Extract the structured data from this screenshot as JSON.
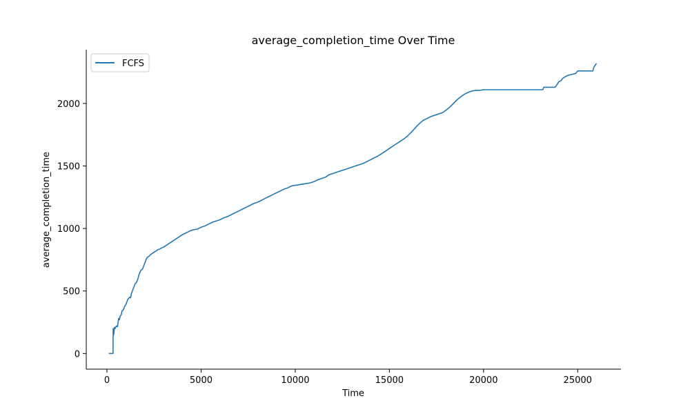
{
  "chart_data": {
    "type": "line",
    "title": "average_completion_time Over Time",
    "xlabel": "Time",
    "ylabel": "average_completion_time",
    "xlim": [
      -1100,
      27300
    ],
    "ylim": [
      -125,
      2430
    ],
    "xticks": [
      0,
      5000,
      10000,
      15000,
      20000,
      25000
    ],
    "yticks": [
      0,
      500,
      1000,
      1500,
      2000
    ],
    "grid": false,
    "legend_position": "top-left",
    "series": [
      {
        "name": "FCFS",
        "color": "#1f77b4",
        "x": [
          100,
          320,
          330,
          360,
          400,
          430,
          500,
          560,
          620,
          660,
          700,
          760,
          800,
          850,
          900,
          950,
          1000,
          1050,
          1100,
          1150,
          1200,
          1250,
          1300,
          1350,
          1400,
          1450,
          1500,
          1550,
          1600,
          1650,
          1700,
          1750,
          1800,
          1850,
          1900,
          1950,
          2000,
          2050,
          2100,
          2150,
          2200,
          2250,
          2300,
          2400,
          2500,
          2600,
          2700,
          2800,
          2900,
          3000,
          3200,
          3400,
          3600,
          3800,
          4000,
          4200,
          4400,
          4600,
          4800,
          5000,
          5200,
          5400,
          5600,
          5800,
          6000,
          6200,
          6400,
          6600,
          6800,
          7000,
          7200,
          7400,
          7600,
          7800,
          8000,
          8200,
          8400,
          8600,
          8800,
          9000,
          9200,
          9400,
          9600,
          9800,
          10000,
          10200,
          10400,
          10600,
          10800,
          11000,
          11200,
          11400,
          11600,
          11800,
          12000,
          12200,
          12400,
          12600,
          12800,
          13000,
          13200,
          13400,
          13600,
          13800,
          14000,
          14200,
          14400,
          14600,
          14800,
          15000,
          15200,
          15400,
          15600,
          15800,
          16000,
          16200,
          16400,
          16600,
          16800,
          17000,
          17200,
          17400,
          17600,
          17800,
          18000,
          18200,
          18400,
          18600,
          18800,
          19000,
          19200,
          19400,
          19600,
          19800,
          20000,
          20500,
          21000,
          21500,
          22000,
          22500,
          23000,
          23150,
          23200,
          23800,
          23900,
          24000,
          24100,
          24200,
          24400,
          24500,
          24900,
          25000,
          25800,
          25850,
          25900,
          25950,
          26000
        ],
        "y": [
          0,
          0,
          200,
          150,
          210,
          200,
          220,
          215,
          280,
          270,
          300,
          310,
          340,
          345,
          360,
          380,
          390,
          410,
          430,
          440,
          450,
          445,
          480,
          500,
          520,
          540,
          560,
          565,
          580,
          600,
          630,
          650,
          665,
          670,
          680,
          700,
          720,
          740,
          760,
          770,
          775,
          780,
          790,
          800,
          810,
          820,
          830,
          835,
          845,
          850,
          870,
          890,
          910,
          930,
          950,
          965,
          980,
          990,
          995,
          1010,
          1020,
          1035,
          1050,
          1060,
          1070,
          1085,
          1095,
          1110,
          1125,
          1140,
          1155,
          1170,
          1185,
          1200,
          1210,
          1225,
          1240,
          1255,
          1270,
          1285,
          1300,
          1315,
          1325,
          1340,
          1345,
          1350,
          1355,
          1360,
          1365,
          1375,
          1390,
          1400,
          1410,
          1430,
          1440,
          1450,
          1460,
          1470,
          1480,
          1490,
          1500,
          1510,
          1520,
          1535,
          1550,
          1565,
          1580,
          1600,
          1620,
          1640,
          1660,
          1680,
          1700,
          1720,
          1745,
          1775,
          1810,
          1840,
          1865,
          1880,
          1895,
          1905,
          1915,
          1925,
          1945,
          1970,
          2000,
          2030,
          2055,
          2075,
          2090,
          2100,
          2105,
          2105,
          2110,
          2110,
          2110,
          2110,
          2110,
          2110,
          2110,
          2110,
          2130,
          2130,
          2150,
          2175,
          2180,
          2200,
          2220,
          2225,
          2240,
          2260,
          2260,
          2285,
          2300,
          2310,
          2320
        ]
      }
    ]
  }
}
